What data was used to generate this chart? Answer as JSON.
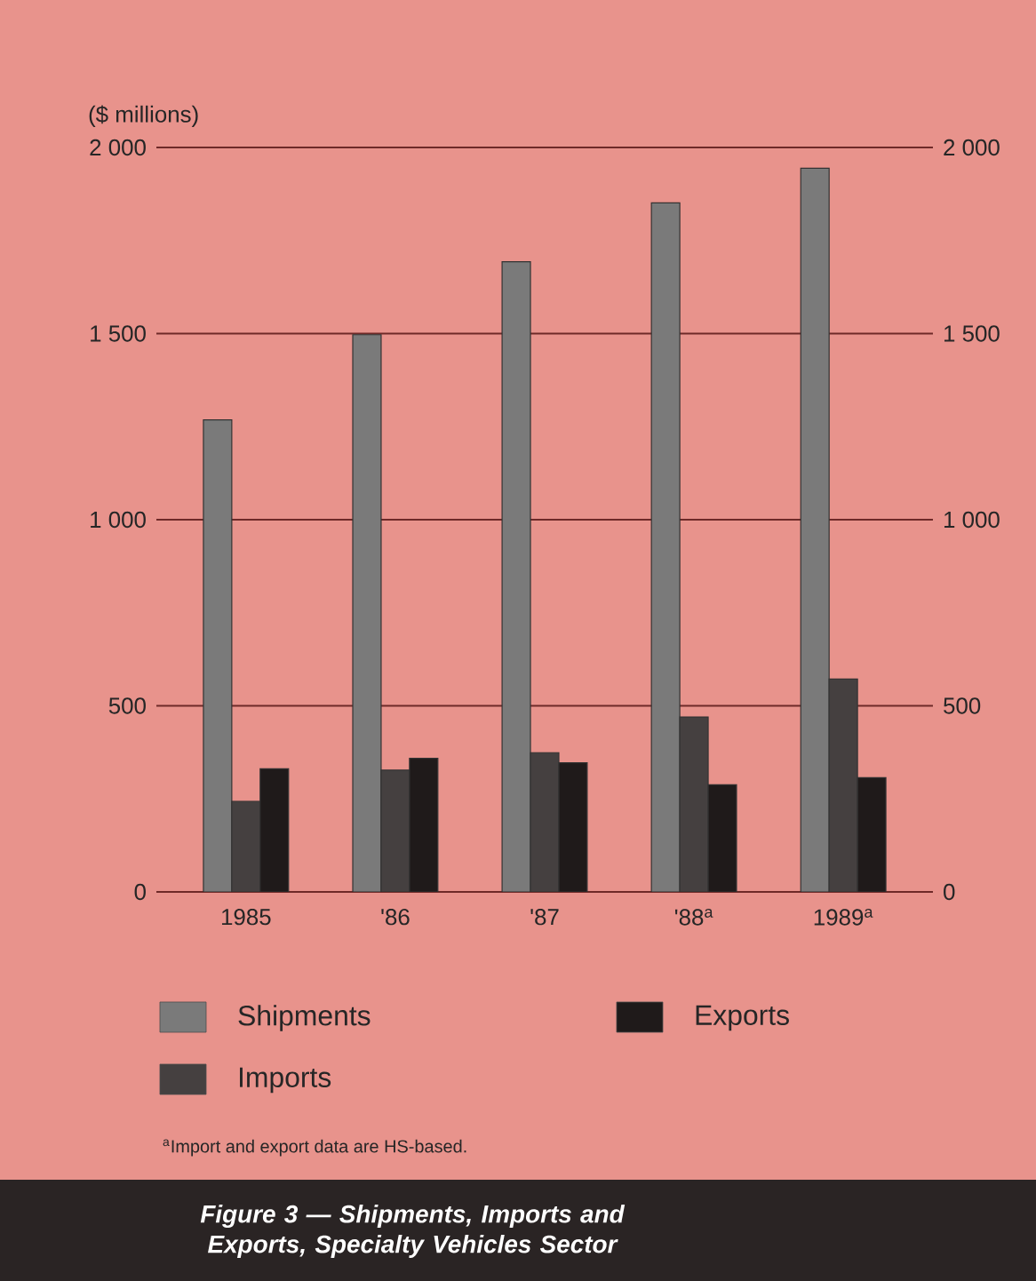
{
  "chart_data": {
    "type": "bar",
    "title": "Figure 3 — Shipments, Imports and Exports, Specialty Vehicles Sector",
    "ylabel": "($ millions)",
    "categories": [
      "1985",
      "'86",
      "'87",
      "'88$^{a}$",
      "1989$^{a}$"
    ],
    "series": [
      {
        "name": "Shipments",
        "color": "#7a7a7a",
        "values": [
          1268,
          1497,
          1693,
          1851,
          1944
        ]
      },
      {
        "name": "Imports",
        "color": "#454040",
        "values": [
          243,
          327,
          374,
          470,
          572
        ]
      },
      {
        "name": "Exports",
        "color": "#1f1a1a",
        "values": [
          331,
          359,
          347,
          288,
          307
        ]
      }
    ],
    "ylim": [
      0,
      2000
    ],
    "yticks": [
      0,
      500,
      {
        "value": 1000,
        "label": "1 000"
      },
      {
        "value": 1500,
        "label": "1 500"
      },
      {
        "value": 2000,
        "label": "2 000"
      }
    ],
    "y2lim": [
      0,
      2000
    ],
    "y2ticks": [
      0,
      500,
      {
        "value": 1000,
        "label": "1 000"
      },
      {
        "value": 1500,
        "label": "1 500"
      },
      {
        "value": 2000,
        "label": "2 000"
      }
    ],
    "grid": "y",
    "legend": "bottom",
    "annotations": [
      "$^{a}$Import and export data are HS-based."
    ]
  }
}
